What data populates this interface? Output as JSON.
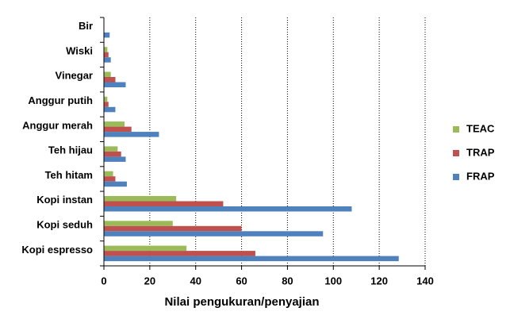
{
  "chart_data": {
    "type": "bar",
    "orientation": "horizontal",
    "x_label": "Nilai pengukuran/penyajian",
    "categories": [
      "Bir",
      "Wiski",
      "Vinegar",
      "Anggur putih",
      "Anggur merah",
      "Teh hijau",
      "Teh hitam",
      "Kopi instan",
      "Kopi seduh",
      "Kopi espresso"
    ],
    "series": [
      {
        "name": "TEAC",
        "color": "#9bbb59",
        "values": [
          0,
          1.5,
          3,
          1.5,
          9,
          6,
          4,
          31.5,
          30,
          36
        ]
      },
      {
        "name": "TRAP",
        "color": "#c0504d",
        "values": [
          0,
          2,
          5,
          2,
          12,
          7.5,
          5,
          52,
          60,
          66
        ]
      },
      {
        "name": "FRAP",
        "color": "#4f81bd",
        "values": [
          2.5,
          3,
          9.5,
          5,
          24,
          9.5,
          10,
          108,
          95.5,
          128.5
        ]
      }
    ],
    "xlim": [
      0,
      140
    ],
    "xticks": [
      0,
      20,
      40,
      60,
      80,
      100,
      120,
      140
    ],
    "grid": true,
    "legend": "right"
  }
}
